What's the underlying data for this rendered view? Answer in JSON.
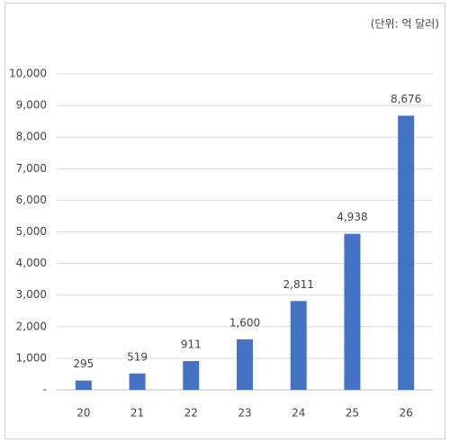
{
  "chart_data": {
    "type": "bar",
    "subtitle": "(단위: 억 달러)",
    "categories": [
      "20",
      "21",
      "22",
      "23",
      "24",
      "25",
      "26"
    ],
    "values": [
      295,
      519,
      911,
      1600,
      2811,
      4938,
      8676
    ],
    "value_labels": [
      "295",
      "519",
      "911",
      "1,600",
      "2,811",
      "4,938",
      "8,676"
    ],
    "color": "#4472c4",
    "ylim": [
      0,
      10000
    ],
    "yticks": [
      {
        "value": 0,
        "label": "-"
      },
      {
        "value": 1000,
        "label": "1,000"
      },
      {
        "value": 2000,
        "label": "2,000"
      },
      {
        "value": 3000,
        "label": "3,000"
      },
      {
        "value": 4000,
        "label": "4,000"
      },
      {
        "value": 5000,
        "label": "5,000"
      },
      {
        "value": 6000,
        "label": "6,000"
      },
      {
        "value": 7000,
        "label": "7,000"
      },
      {
        "value": 8000,
        "label": "8,000"
      },
      {
        "value": 9000,
        "label": "9,000"
      },
      {
        "value": 10000,
        "label": "10,000"
      }
    ],
    "grid": true
  }
}
